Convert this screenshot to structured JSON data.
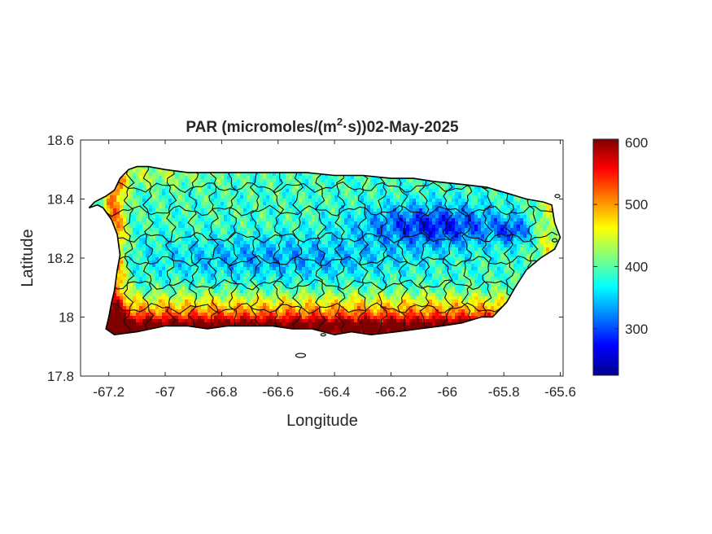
{
  "figure": {
    "title_prefix": "PAR (micromoles/(m",
    "title_sup": "2",
    "title_suffix": "·s))02-May-2025",
    "xlabel": "Longitude",
    "ylabel": "Latitude"
  },
  "chart_data": {
    "type": "heatmap",
    "variable": "PAR",
    "units": "micromoles/(m2·s)",
    "date": "02-May-2025",
    "region": "Puerto Rico",
    "xlim": [
      -67.3,
      -65.59
    ],
    "ylim": [
      17.8,
      18.6
    ],
    "xticks": [
      -67.2,
      -67,
      -66.8,
      -66.6,
      -66.4,
      -66.2,
      -66,
      -65.8,
      -65.6
    ],
    "xtick_labels": [
      "-67.2",
      "-67",
      "-66.8",
      "-66.6",
      "-66.4",
      "-66.2",
      "-66",
      "-65.8",
      "-65.6"
    ],
    "yticks": [
      17.8,
      18,
      18.2,
      18.4,
      18.6
    ],
    "ytick_labels": [
      "17.8",
      "18",
      "18.2",
      "18.4",
      "18.6"
    ],
    "colorbar": {
      "colormap": "jet",
      "clim": [
        225,
        605
      ],
      "ticks": [
        300,
        400,
        500,
        600
      ],
      "tick_labels": [
        "300",
        "400",
        "500",
        "600"
      ]
    },
    "approximate_field": [
      {
        "area": "south coast",
        "value": 580
      },
      {
        "area": "west coast",
        "value": 470
      },
      {
        "area": "north coast",
        "value": 380
      },
      {
        "area": "central mountains",
        "value": 330
      },
      {
        "area": "northeast interior",
        "value": 280
      },
      {
        "area": "eastern tip",
        "value": 420
      }
    ],
    "grid": false,
    "outline": "municipality boundaries"
  }
}
